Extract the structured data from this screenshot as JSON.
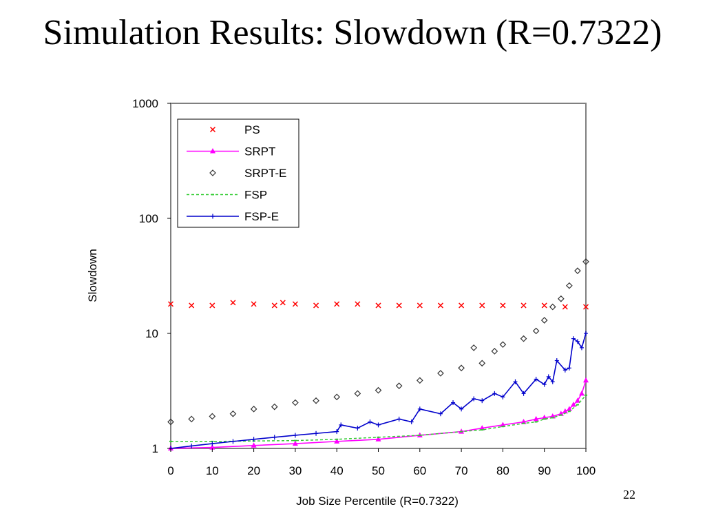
{
  "slide": {
    "title": "Simulation Results: Slowdown (R=0.7322)",
    "page_number": "22"
  },
  "chart_data": {
    "type": "line",
    "title": "",
    "xlabel": "Job Size Percentile (R=0.7322)",
    "ylabel": "Slowdown",
    "xlim": [
      0,
      100
    ],
    "ylim": [
      1,
      1000
    ],
    "yscale": "log",
    "x_ticks": [
      "0",
      "10",
      "20",
      "30",
      "40",
      "50",
      "60",
      "70",
      "80",
      "90",
      "100"
    ],
    "y_ticks": [
      "1",
      "10",
      "100",
      "1000"
    ],
    "grid": false,
    "legend_position": "top-left",
    "series": [
      {
        "name": "PS",
        "color": "#ff0000",
        "marker": "x",
        "line": false,
        "x": [
          0,
          5,
          10,
          15,
          20,
          25,
          27,
          30,
          35,
          40,
          45,
          50,
          55,
          60,
          65,
          70,
          75,
          80,
          85,
          90,
          95,
          100
        ],
        "y": [
          18,
          17.5,
          17.5,
          18.5,
          18,
          17.5,
          18.5,
          18,
          17.5,
          18,
          18,
          17.5,
          17.5,
          17.5,
          17.5,
          17.5,
          17.5,
          17.5,
          17.5,
          17.5,
          17,
          17
        ]
      },
      {
        "name": "SRPT",
        "color": "#ff00ff",
        "marker": "triangle",
        "line": true,
        "x": [
          0,
          10,
          20,
          30,
          40,
          50,
          60,
          70,
          75,
          80,
          85,
          88,
          90,
          92,
          94,
          95,
          96,
          97,
          98,
          99,
          100
        ],
        "y": [
          1.0,
          1.02,
          1.06,
          1.1,
          1.15,
          1.2,
          1.3,
          1.4,
          1.5,
          1.6,
          1.7,
          1.8,
          1.85,
          1.9,
          2.0,
          2.1,
          2.2,
          2.4,
          2.6,
          3.0,
          3.9
        ]
      },
      {
        "name": "SRPT-E",
        "color": "#333333",
        "marker": "diamond",
        "line": false,
        "x": [
          0,
          5,
          10,
          15,
          20,
          25,
          30,
          35,
          40,
          45,
          50,
          55,
          60,
          65,
          70,
          73,
          75,
          78,
          80,
          85,
          88,
          90,
          92,
          94,
          96,
          98,
          100
        ],
        "y": [
          1.7,
          1.8,
          1.9,
          2.0,
          2.2,
          2.3,
          2.5,
          2.6,
          2.8,
          3.0,
          3.2,
          3.5,
          3.9,
          4.5,
          5.0,
          7.5,
          5.5,
          7.0,
          8.0,
          9.0,
          10.5,
          13,
          17,
          20,
          26,
          35,
          42
        ]
      },
      {
        "name": "FSP",
        "color": "#33cc33",
        "marker": "dash",
        "line": true,
        "dashed": true,
        "x": [
          0,
          10,
          20,
          30,
          40,
          50,
          60,
          70,
          75,
          80,
          85,
          88,
          90,
          92,
          94,
          96,
          98,
          100
        ],
        "y": [
          1.15,
          1.15,
          1.16,
          1.17,
          1.2,
          1.25,
          1.3,
          1.4,
          1.45,
          1.55,
          1.65,
          1.7,
          1.8,
          1.85,
          1.95,
          2.1,
          2.4,
          2.9
        ]
      },
      {
        "name": "FSP-E",
        "color": "#0000cc",
        "marker": "plus",
        "line": true,
        "x": [
          0,
          5,
          10,
          15,
          20,
          25,
          30,
          35,
          40,
          41,
          45,
          48,
          50,
          55,
          58,
          60,
          65,
          68,
          70,
          73,
          75,
          78,
          80,
          83,
          85,
          88,
          90,
          91,
          92,
          93,
          95,
          96,
          97,
          98,
          99,
          100
        ],
        "y": [
          1.0,
          1.05,
          1.1,
          1.15,
          1.2,
          1.25,
          1.3,
          1.35,
          1.4,
          1.6,
          1.5,
          1.7,
          1.6,
          1.8,
          1.7,
          2.2,
          2.0,
          2.5,
          2.2,
          2.7,
          2.6,
          3.0,
          2.8,
          3.8,
          3.0,
          4.0,
          3.6,
          4.2,
          3.8,
          5.8,
          4.8,
          5.0,
          9.0,
          8.5,
          7.5,
          10.0
        ]
      }
    ]
  }
}
